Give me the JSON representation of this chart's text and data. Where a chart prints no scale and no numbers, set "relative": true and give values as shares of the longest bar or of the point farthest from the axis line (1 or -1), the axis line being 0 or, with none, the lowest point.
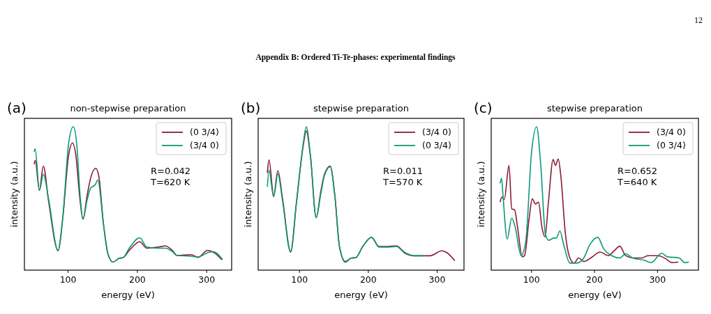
{
  "chart_data": [
    {
      "type": "line",
      "title": "non-stepwise preparation",
      "xlabel": "energy (eV)",
      "ylabel": "intensity (a.u.)",
      "relative": true,
      "xlim": [
        37,
        336
      ],
      "xticks": [
        100,
        200,
        300
      ],
      "legend": "top right",
      "grid": false,
      "line_style": "solid",
      "annotations": [
        "(a)",
        "R=0.042",
        "T=620 K",
        "Appendix B: Ordered Ti-Te-phases: experimental findings",
        "12"
      ],
      "series": [
        {
          "name": "(0 3/4)",
          "color": "#8b1a2e",
          "x": [
            51.2,
            52.5,
            58.6,
            64.3,
            72,
            85.5,
            92.3,
            100.7,
            106.4,
            110.8,
            117.5,
            121.5,
            127.6,
            132.7,
            140.1,
            144.4,
            151.2,
            158,
            164.6,
            173,
            179.8,
            188.2,
            203.4,
            213.5,
            230.3,
            240.4,
            250.5,
            257.2,
            277.4,
            287.5,
            301,
            311,
            321.2
          ],
          "values": [
            0.742,
            0.766,
            0.556,
            0.726,
            0.476,
            0.137,
            0.363,
            0.798,
            0.887,
            0.815,
            0.476,
            0.355,
            0.524,
            0.645,
            0.71,
            0.653,
            0.315,
            0.105,
            0.056,
            0.081,
            0.089,
            0.137,
            0.198,
            0.153,
            0.161,
            0.169,
            0.137,
            0.102,
            0.108,
            0.089,
            0.137,
            0.121,
            0.076
          ]
        },
        {
          "name": "(3/4 0)",
          "color": "#0a9a78",
          "x": [
            51.2,
            52.5,
            58.6,
            64.3,
            72,
            85.5,
            92.3,
            100.7,
            107.4,
            112.5,
            117.5,
            121.5,
            127.6,
            132.7,
            139.4,
            142.8,
            151.2,
            158,
            164.6,
            173,
            179.8,
            188.2,
            203.4,
            213.5,
            230.3,
            240.4,
            250.5,
            257.2,
            277.4,
            287.5,
            302.7,
            309.4,
            322.5
          ],
          "values": [
            0.827,
            0.847,
            0.556,
            0.669,
            0.492,
            0.134,
            0.363,
            0.879,
            1,
            0.879,
            0.508,
            0.355,
            0.492,
            0.573,
            0.597,
            0.629,
            0.315,
            0.105,
            0.056,
            0.081,
            0.089,
            0.153,
            0.226,
            0.161,
            0.153,
            0.153,
            0.129,
            0.102,
            0.097,
            0.092,
            0.124,
            0.129,
            0.076
          ]
        }
      ]
    },
    {
      "type": "line",
      "title": "stepwise preparation",
      "xlabel": "energy (eV)",
      "ylabel": "intensity (a.u.)",
      "relative": true,
      "xlim": [
        40,
        339
      ],
      "xticks": [
        100,
        200,
        300
      ],
      "legend": "top right",
      "grid": false,
      "line_style": "solid",
      "annotations": [
        "(b)",
        "R=0.011",
        "T=570 K"
      ],
      "series": [
        {
          "name": "(3/4 0)",
          "color": "#8b1a2e",
          "x": [
            53.4,
            55.7,
            62.5,
            68.6,
            75.3,
            87.2,
            95.6,
            105.7,
            109.8,
            115.9,
            124.3,
            131.1,
            136.1,
            144.6,
            151.4,
            158.1,
            166.6,
            175,
            181.8,
            191.9,
            204.7,
            215.5,
            229,
            240.9,
            252.7,
            266.2,
            289.9,
            306.8,
            313.5,
            325.3
          ],
          "values": [
            0.681,
            0.769,
            0.519,
            0.694,
            0.503,
            0.129,
            0.471,
            0.874,
            0.971,
            0.794,
            0.366,
            0.552,
            0.665,
            0.726,
            0.519,
            0.165,
            0.06,
            0.084,
            0.087,
            0.165,
            0.229,
            0.165,
            0.165,
            0.169,
            0.124,
            0.1,
            0.1,
            0.135,
            0.124,
            0.068
          ]
        },
        {
          "name": "(0 3/4)",
          "color": "#0a9a78",
          "x": [
            53.4,
            55.7,
            62.5,
            68.6,
            75.3,
            87.2,
            95.6,
            105.7,
            109.8,
            115.9,
            124.3,
            131.1,
            136.1,
            144.6,
            151.4,
            158.1,
            166.6,
            175,
            181.8,
            191.9,
            204.7,
            215.5,
            229,
            240.9,
            252.7,
            266.2,
            279.7
          ],
          "values": [
            0.584,
            0.697,
            0.511,
            0.671,
            0.487,
            0.124,
            0.471,
            0.89,
            1,
            0.802,
            0.366,
            0.535,
            0.656,
            0.721,
            0.519,
            0.165,
            0.055,
            0.084,
            0.087,
            0.165,
            0.229,
            0.161,
            0.161,
            0.165,
            0.119,
            0.1,
            0.1
          ]
        }
      ]
    },
    {
      "type": "line",
      "title": "stepwise preparation",
      "xlabel": "energy (eV)",
      "ylabel": "intensity (a.u.)",
      "relative": true,
      "xlim": [
        36,
        365
      ],
      "xticks": [
        100,
        200,
        300
      ],
      "legend": "top right",
      "grid": false,
      "line_style": "solid",
      "annotations": [
        "(c)",
        "R=0.652",
        "T=640 K"
      ],
      "series": [
        {
          "name": "(3/4 0)",
          "color": "#8b1a2e",
          "x": [
            50.2,
            53.1,
            56.8,
            64.2,
            68.6,
            73.1,
            77.9,
            85.2,
            88.9,
            96.3,
            101.1,
            106.3,
            111.1,
            116.6,
            121.4,
            126.9,
            134.3,
            138,
            142.4,
            146.9,
            153.5,
            160.9,
            167.5,
            174.9,
            183,
            194.1,
            208.9,
            221.8,
            231,
            240.2,
            249.4,
            260.5,
            275.3,
            284.5,
            301.1,
            312.2,
            323.2,
            332.5
          ],
          "values": [
            0.477,
            0.51,
            0.493,
            0.73,
            0.428,
            0.42,
            0.297,
            0.093,
            0.101,
            0.363,
            0.497,
            0.461,
            0.474,
            0.297,
            0.232,
            0.477,
            0.771,
            0.73,
            0.775,
            0.641,
            0.265,
            0.085,
            0.049,
            0.085,
            0.06,
            0.085,
            0.126,
            0.101,
            0.134,
            0.167,
            0.101,
            0.085,
            0.085,
            0.101,
            0.101,
            0.082,
            0.052,
            0.056
          ]
        },
        {
          "name": "(0 3/4)",
          "color": "#0a9a78",
          "x": [
            50.2,
            52.4,
            54.6,
            61.3,
            68.6,
            74.2,
            83.4,
            90.8,
            100,
            108.1,
            114.8,
            122.1,
            127.7,
            135.1,
            139.5,
            145,
            151.7,
            160.9,
            172,
            183,
            192.3,
            205.2,
            214.4,
            227.3,
            240.2,
            249.4,
            260.5,
            279,
            290,
            306.6,
            315.9,
            334.3,
            343.5,
            349.1
          ],
          "values": [
            0.608,
            0.641,
            0.526,
            0.216,
            0.363,
            0.297,
            0.101,
            0.199,
            0.82,
            1,
            0.722,
            0.248,
            0.208,
            0.224,
            0.224,
            0.273,
            0.167,
            0.049,
            0.049,
            0.085,
            0.175,
            0.229,
            0.15,
            0.101,
            0.085,
            0.114,
            0.085,
            0.069,
            0.052,
            0.118,
            0.093,
            0.085,
            0.052,
            0.056
          ]
        }
      ]
    }
  ]
}
